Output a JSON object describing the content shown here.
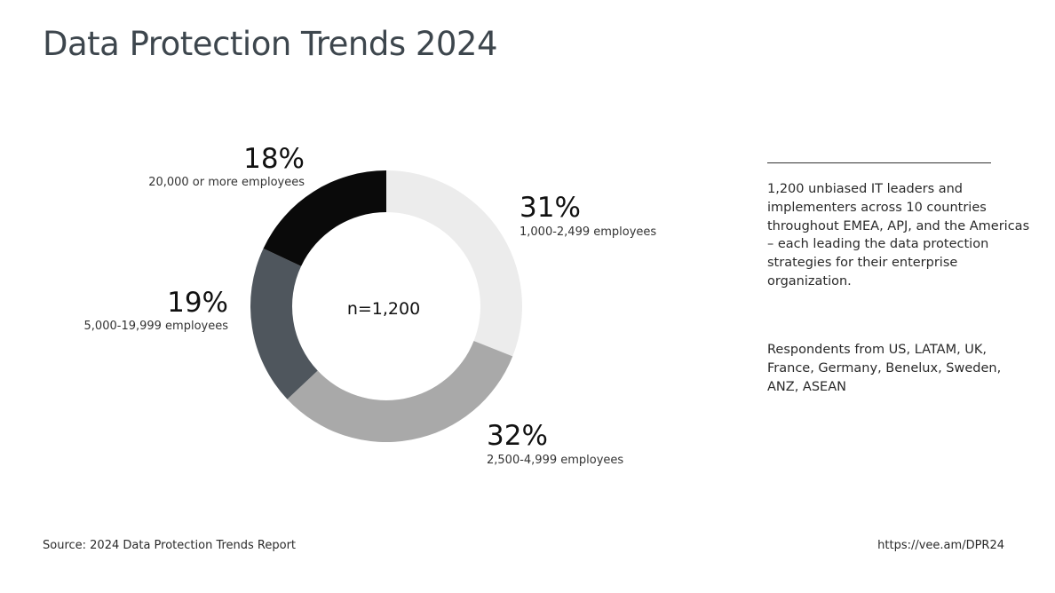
{
  "page": {
    "title": "Data Protection Trends 2024",
    "source": "Source: 2024 Data Protection Trends Report",
    "url": "https://vee.am/DPR24"
  },
  "side_panel": {
    "paragraph_1": "1,200 unbiased IT leaders and implementers across 10 countries throughout EMEA, APJ, and the Americas – each leading the data protection strategies for their enterprise organization.",
    "paragraph_2": "Respondents from US, LATAM, UK, France, Germany, Benelux, Sweden, ANZ, ASEAN"
  },
  "chart_data": {
    "type": "pie",
    "variant": "donut",
    "center_label": "n=1,200",
    "categories": [
      "1,000-2,499 employees",
      "2,500-4,999 employees",
      "5,000-19,999 employees",
      "20,000 or more employees"
    ],
    "values": [
      31,
      32,
      19,
      18
    ],
    "value_labels": [
      "31%",
      "32%",
      "19%",
      "18%"
    ],
    "colors": [
      "#ececec",
      "#a9a9a9",
      "#4f565d",
      "#0a0a0a"
    ],
    "start": "12 o'clock",
    "direction": "clockwise"
  }
}
